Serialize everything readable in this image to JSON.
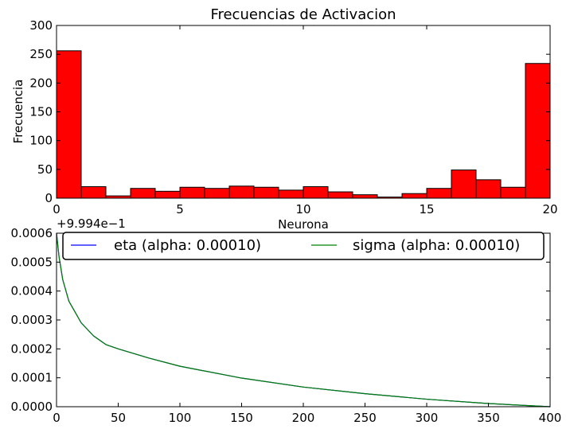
{
  "chart_data": [
    {
      "type": "bar",
      "title": "Frecuencias de Activacion",
      "xlabel": "Neurona",
      "ylabel": "Frecuencia",
      "xlim": [
        0,
        20
      ],
      "ylim": [
        0,
        300
      ],
      "x_ticks": [
        "0",
        "5",
        "10",
        "15",
        "20"
      ],
      "y_ticks": [
        "0",
        "50",
        "100",
        "150",
        "200",
        "250",
        "300"
      ],
      "bin_edges": [
        0,
        1,
        2,
        3,
        4,
        5,
        6,
        7,
        8,
        9,
        10,
        11,
        12,
        13,
        14,
        15,
        16,
        17,
        18,
        19,
        20
      ],
      "values": [
        256,
        20,
        4,
        17,
        12,
        19,
        17,
        21,
        19,
        14,
        20,
        11,
        6,
        2,
        8,
        17,
        49,
        32,
        19,
        234
      ],
      "bar_color": "#ff0000",
      "grid": false
    },
    {
      "type": "line",
      "title": "",
      "xlabel": "",
      "ylabel": "",
      "y_offset_label": "+9.994e−1",
      "xlim": [
        0,
        400
      ],
      "ylim": [
        0,
        0.0006
      ],
      "x_ticks": [
        "0",
        "50",
        "100",
        "150",
        "200",
        "250",
        "300",
        "350",
        "400"
      ],
      "y_ticks": [
        "0.0000",
        "0.0001",
        "0.0002",
        "0.0003",
        "0.0004",
        "0.0005",
        "0.0006"
      ],
      "legend_position": "top",
      "grid": false,
      "x": [
        0,
        2,
        5,
        10,
        20,
        30,
        40,
        50,
        75,
        100,
        150,
        200,
        250,
        300,
        350,
        400
      ],
      "series": [
        {
          "name": "eta (alpha: 0.00010)",
          "color": "#0000ff",
          "values": [
            0.0006,
            0.00052,
            0.00044,
            0.000365,
            0.00029,
            0.000245,
            0.000215,
            0.0002,
            0.000168,
            0.00014,
            9.9e-05,
            6.8e-05,
            4.5e-05,
            2.6e-05,
            1.1e-05,
            0.0
          ]
        },
        {
          "name": "sigma (alpha: 0.00010)",
          "color": "#008000",
          "values": [
            0.0006,
            0.00052,
            0.00044,
            0.000365,
            0.00029,
            0.000245,
            0.000215,
            0.0002,
            0.000168,
            0.00014,
            9.9e-05,
            6.8e-05,
            4.5e-05,
            2.6e-05,
            1.1e-05,
            0.0
          ]
        }
      ]
    }
  ]
}
